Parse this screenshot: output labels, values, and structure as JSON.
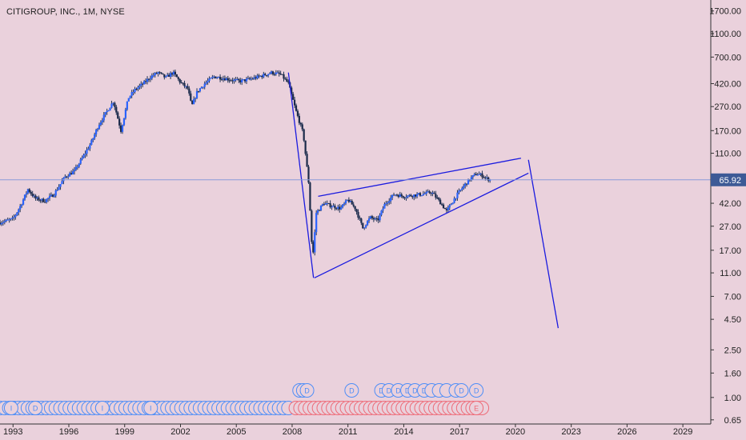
{
  "chart_title": "CITIGROUP, INC., 1M, NYSE",
  "chart_data": {
    "type": "candlestick",
    "symbol": "CITIGROUP, INC., 1M, NYSE",
    "scale": "log",
    "ylim": [
      0.6,
      2100
    ],
    "xlim": [
      1992.3,
      2030.5
    ],
    "last_price": "65.92",
    "y_tick_labels": [
      "1700.00",
      "1100.00",
      "700.00",
      "420.00",
      "270.00",
      "170.00",
      "110.00",
      "65.92",
      "42.00",
      "27.00",
      "17.00",
      "11.00",
      "7.00",
      "4.50",
      "2.50",
      "1.60",
      "1.00",
      "0.65"
    ],
    "y_ticks": [
      1700,
      1100,
      700,
      420,
      270,
      170,
      110,
      42,
      27,
      17,
      11,
      7,
      4.5,
      2.5,
      1.6,
      1.0,
      0.65
    ],
    "x_tick_labels": [
      "1993",
      "1996",
      "1999",
      "2002",
      "2005",
      "2008",
      "2011",
      "2014",
      "2017",
      "2020",
      "2023",
      "2026",
      "2029"
    ],
    "x_ticks": [
      1993,
      1996,
      1999,
      2002,
      2005,
      2008,
      2011,
      2014,
      2017,
      2020,
      2023,
      2026,
      2029
    ],
    "price_path": [
      [
        1992.3,
        29
      ],
      [
        1993.0,
        31
      ],
      [
        1993.4,
        40
      ],
      [
        1993.8,
        55
      ],
      [
        1994.2,
        46
      ],
      [
        1994.7,
        44
      ],
      [
        1995.2,
        50
      ],
      [
        1995.8,
        70
      ],
      [
        1996.3,
        78
      ],
      [
        1996.8,
        105
      ],
      [
        1997.2,
        135
      ],
      [
        1997.6,
        190
      ],
      [
        1998.0,
        240
      ],
      [
        1998.4,
        300
      ],
      [
        1998.8,
        170
      ],
      [
        1999.2,
        320
      ],
      [
        1999.6,
        380
      ],
      [
        2000.0,
        420
      ],
      [
        2000.4,
        480
      ],
      [
        2000.8,
        520
      ],
      [
        2001.2,
        470
      ],
      [
        2001.6,
        520
      ],
      [
        2002.0,
        430
      ],
      [
        2002.4,
        380
      ],
      [
        2002.6,
        270
      ],
      [
        2002.9,
        360
      ],
      [
        2003.3,
        420
      ],
      [
        2003.8,
        480
      ],
      [
        2004.2,
        470
      ],
      [
        2004.8,
        450
      ],
      [
        2005.2,
        440
      ],
      [
        2005.8,
        460
      ],
      [
        2006.4,
        490
      ],
      [
        2006.9,
        520
      ],
      [
        2007.4,
        500
      ],
      [
        2007.8,
        420
      ],
      [
        2008.2,
        250
      ],
      [
        2008.6,
        160
      ],
      [
        2008.9,
        60
      ],
      [
        2009.1,
        14
      ],
      [
        2009.3,
        35
      ],
      [
        2009.7,
        42
      ],
      [
        2010.1,
        40
      ],
      [
        2010.6,
        38
      ],
      [
        2011.0,
        45
      ],
      [
        2011.4,
        38
      ],
      [
        2011.8,
        26
      ],
      [
        2012.2,
        32
      ],
      [
        2012.6,
        30
      ],
      [
        2013.0,
        42
      ],
      [
        2013.5,
        50
      ],
      [
        2014.0,
        48
      ],
      [
        2014.5,
        49
      ],
      [
        2015.0,
        50
      ],
      [
        2015.5,
        52
      ],
      [
        2016.0,
        42
      ],
      [
        2016.3,
        36
      ],
      [
        2016.8,
        48
      ],
      [
        2017.2,
        58
      ],
      [
        2017.6,
        68
      ],
      [
        2017.9,
        74
      ],
      [
        2018.2,
        72
      ],
      [
        2018.5,
        67
      ],
      [
        2018.7,
        65.92
      ]
    ],
    "drawings": [
      {
        "name": "crash-line",
        "points": [
          [
            2007.8,
            520
          ],
          [
            2009.15,
            10
          ]
        ]
      },
      {
        "name": "wedge-upper-line",
        "points": [
          [
            2009.4,
            48
          ],
          [
            2020.3,
            100
          ]
        ]
      },
      {
        "name": "wedge-lower-line",
        "points": [
          [
            2009.2,
            10
          ],
          [
            2020.7,
            75
          ]
        ]
      },
      {
        "name": "projection-line",
        "points": [
          [
            2020.7,
            97
          ],
          [
            2022.3,
            3.8
          ]
        ]
      }
    ]
  },
  "events": {
    "upper_markers": [
      {
        "x": 2008.4,
        "label": ""
      },
      {
        "x": 2008.6,
        "label": ""
      },
      {
        "x": 2008.8,
        "label": "D"
      },
      {
        "x": 2011.2,
        "label": "D"
      },
      {
        "x": 2012.8,
        "label": "D"
      },
      {
        "x": 2013.2,
        "label": "D"
      },
      {
        "x": 2013.7,
        "label": "D"
      },
      {
        "x": 2014.2,
        "label": "D"
      },
      {
        "x": 2014.6,
        "label": "D"
      },
      {
        "x": 2015.1,
        "label": "D"
      },
      {
        "x": 2015.5,
        "label": ""
      },
      {
        "x": 2015.9,
        "label": ""
      },
      {
        "x": 2016.3,
        "label": ""
      },
      {
        "x": 2016.8,
        "label": ""
      },
      {
        "x": 2017.1,
        "label": "D"
      },
      {
        "x": 2017.9,
        "label": "D"
      }
    ],
    "lower_marker_labels": [
      "I",
      "D",
      "I",
      "I",
      "E"
    ],
    "lower_blue_from": 1992.3,
    "lower_blue_to": 2008.0,
    "lower_red_from": 2008.2,
    "lower_red_to": 2018.4
  },
  "colors": {
    "background": "#ead1dc",
    "candle_up": "#2962ff",
    "candle_body": "#1b2a4a",
    "drawing": "#1a1adf",
    "price_line": "#8a9bd9",
    "price_badge": "#3d5a96",
    "event_blue": "#4f8ef7",
    "event_red": "#ee6b78"
  }
}
